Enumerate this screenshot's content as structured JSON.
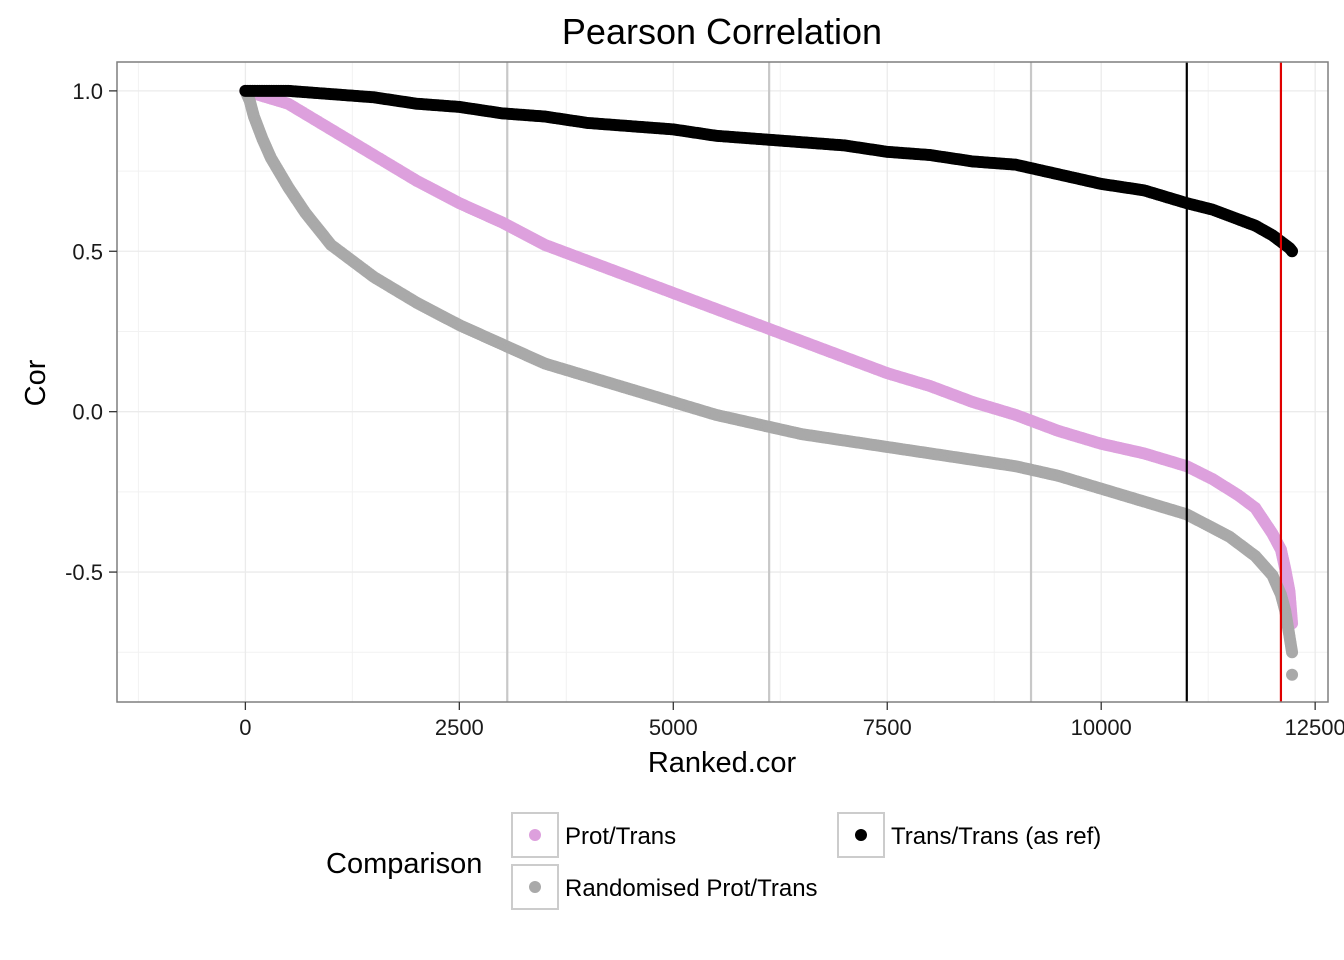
{
  "chart_data": {
    "type": "scatter",
    "title": "Pearson Correlation",
    "xlabel": "Ranked.cor",
    "ylabel": "Cor",
    "xlim": [
      -1500,
      12650
    ],
    "ylim": [
      -0.905,
      1.09
    ],
    "x_ticks": [
      0,
      2500,
      5000,
      7500,
      10000,
      12500
    ],
    "y_ticks": [
      -0.5,
      0.0,
      0.5,
      1.0
    ],
    "x_tick_labels": [
      "0",
      "2500",
      "5000",
      "7500",
      "10000",
      "12500"
    ],
    "y_tick_labels": [
      "-0.5",
      "0.0",
      "0.5",
      "1.0"
    ],
    "grid": true,
    "vertical_lines": [
      {
        "x": 3060,
        "color": "#c8c8c8"
      },
      {
        "x": 6120,
        "color": "#c8c8c8"
      },
      {
        "x": 9180,
        "color": "#c8c8c8"
      },
      {
        "x": 11000,
        "color": "#000000"
      },
      {
        "x": 12100,
        "color": "#e00000"
      }
    ],
    "legend": {
      "title": "Comparison",
      "placement": "bottom"
    },
    "series": [
      {
        "name": "Prot/Trans",
        "color": "#dda0dd",
        "x": [
          0,
          500,
          1000,
          1500,
          2000,
          2500,
          3000,
          3500,
          4000,
          4500,
          5000,
          5500,
          6000,
          6500,
          7000,
          7500,
          8000,
          8500,
          9000,
          9500,
          10000,
          10500,
          11000,
          11300,
          11600,
          11800,
          12000,
          12100,
          12150,
          12200,
          12230
        ],
        "y": [
          1.0,
          0.96,
          0.88,
          0.8,
          0.72,
          0.65,
          0.59,
          0.52,
          0.47,
          0.42,
          0.37,
          0.32,
          0.27,
          0.22,
          0.17,
          0.12,
          0.08,
          0.03,
          -0.01,
          -0.06,
          -0.1,
          -0.13,
          -0.17,
          -0.21,
          -0.26,
          -0.3,
          -0.38,
          -0.43,
          -0.49,
          -0.56,
          -0.66
        ]
      },
      {
        "name": "Randomised Prot/Trans",
        "color": "#a9a9a9",
        "x": [
          0,
          50,
          100,
          200,
          300,
          500,
          700,
          1000,
          1500,
          2000,
          2500,
          3000,
          3500,
          4000,
          4500,
          5000,
          5500,
          6000,
          6500,
          7000,
          7500,
          8000,
          8500,
          9000,
          9500,
          10000,
          10500,
          11000,
          11500,
          11800,
          12000,
          12100,
          12150,
          12200,
          12230
        ],
        "y": [
          1.0,
          0.97,
          0.92,
          0.85,
          0.79,
          0.7,
          0.62,
          0.52,
          0.42,
          0.34,
          0.27,
          0.21,
          0.15,
          0.11,
          0.07,
          0.03,
          -0.01,
          -0.04,
          -0.07,
          -0.09,
          -0.11,
          -0.13,
          -0.15,
          -0.17,
          -0.2,
          -0.24,
          -0.28,
          -0.32,
          -0.39,
          -0.45,
          -0.51,
          -0.57,
          -0.62,
          -0.7,
          -0.75
        ]
      },
      {
        "name": "Trans/Trans (as ref)",
        "color": "#000000",
        "x": [
          0,
          500,
          1000,
          1500,
          2000,
          2500,
          3000,
          3500,
          4000,
          4500,
          5000,
          5500,
          6000,
          6500,
          7000,
          7500,
          8000,
          8500,
          9000,
          9500,
          10000,
          10500,
          11000,
          11300,
          11600,
          11800,
          12000,
          12100,
          12150,
          12200,
          12230
        ],
        "y": [
          1.0,
          1.0,
          0.99,
          0.98,
          0.96,
          0.95,
          0.93,
          0.92,
          0.9,
          0.89,
          0.88,
          0.86,
          0.85,
          0.84,
          0.83,
          0.81,
          0.8,
          0.78,
          0.77,
          0.74,
          0.71,
          0.69,
          0.65,
          0.63,
          0.6,
          0.58,
          0.55,
          0.53,
          0.52,
          0.51,
          0.5
        ]
      }
    ],
    "outlier_points": [
      {
        "series": "Randomised Prot/Trans",
        "x": 12230,
        "y": -0.82
      }
    ]
  }
}
